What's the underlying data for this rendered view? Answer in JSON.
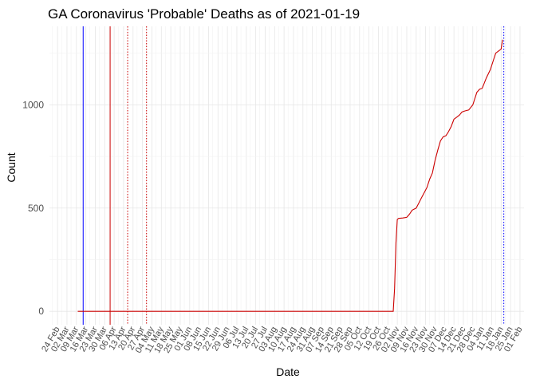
{
  "chart_data": {
    "type": "line",
    "title": "GA Coronavirus 'Probable' Deaths as of 2021-01-19",
    "xlabel": "Date",
    "ylabel": "Count",
    "xlim": [
      "2020-02-18",
      "2021-02-04"
    ],
    "ylim": [
      -65,
      1380
    ],
    "yticks": [
      0,
      500,
      1000
    ],
    "xticks": [
      "2020-02-24",
      "2020-03-02",
      "2020-03-09",
      "2020-03-16",
      "2020-03-23",
      "2020-03-30",
      "2020-04-06",
      "2020-04-13",
      "2020-04-20",
      "2020-04-27",
      "2020-05-04",
      "2020-05-11",
      "2020-05-18",
      "2020-05-25",
      "2020-06-01",
      "2020-06-08",
      "2020-06-15",
      "2020-06-22",
      "2020-06-29",
      "2020-07-06",
      "2020-07-13",
      "2020-07-20",
      "2020-07-27",
      "2020-08-03",
      "2020-08-10",
      "2020-08-17",
      "2020-08-24",
      "2020-08-31",
      "2020-09-07",
      "2020-09-14",
      "2020-09-21",
      "2020-09-28",
      "2020-10-05",
      "2020-10-12",
      "2020-10-19",
      "2020-10-26",
      "2020-11-02",
      "2020-11-09",
      "2020-11-16",
      "2020-11-23",
      "2020-11-30",
      "2020-12-07",
      "2020-12-14",
      "2020-12-21",
      "2020-12-28",
      "2021-01-04",
      "2021-01-11",
      "2021-01-18",
      "2021-01-25",
      "2021-02-01"
    ],
    "xtick_labels": [
      "24 Feb",
      "02 Mar",
      "09 Mar",
      "16 Mar",
      "23 Mar",
      "30 Mar",
      "06 Apr",
      "13 Apr",
      "20 Apr",
      "27 Apr",
      "04 May",
      "11 May",
      "18 May",
      "25 May",
      "01 Jun",
      "08 Jun",
      "15 Jun",
      "22 Jun",
      "29 Jun",
      "06 Jul",
      "13 Jul",
      "20 Jul",
      "27 Jul",
      "03 Aug",
      "10 Aug",
      "17 Aug",
      "24 Aug",
      "31 Aug",
      "07 Sep",
      "14 Sep",
      "21 Sep",
      "28 Sep",
      "05 Oct",
      "12 Oct",
      "19 Oct",
      "26 Oct",
      "02 Nov",
      "09 Nov",
      "16 Nov",
      "23 Nov",
      "30 Nov",
      "07 Dec",
      "14 Dec",
      "21 Dec",
      "28 Dec",
      "04 Jan",
      "11 Jan",
      "18 Jan",
      "25 Jan",
      "01 Feb"
    ],
    "grid": true,
    "reference_lines": [
      {
        "x": "2020-03-14",
        "color": "#0000ff",
        "style": "solid"
      },
      {
        "x": "2020-04-03",
        "color": "#cc0000",
        "style": "solid"
      },
      {
        "x": "2020-04-16",
        "color": "#cc0000",
        "style": "dotted"
      },
      {
        "x": "2020-04-30",
        "color": "#cc0000",
        "style": "dotted"
      },
      {
        "x": "2021-01-20",
        "color": "#0000ff",
        "style": "dotted"
      }
    ],
    "series": [
      {
        "color": "#cc0000",
        "x": [
          "2020-03-10",
          "2020-10-30",
          "2020-10-31",
          "2020-11-01",
          "2020-11-02",
          "2020-11-03",
          "2020-11-06",
          "2020-11-09",
          "2020-11-11",
          "2020-11-13",
          "2020-11-16",
          "2020-11-18",
          "2020-11-20",
          "2020-11-22",
          "2020-11-24",
          "2020-11-26",
          "2020-11-28",
          "2020-11-30",
          "2020-12-02",
          "2020-12-04",
          "2020-12-06",
          "2020-12-08",
          "2020-12-10",
          "2020-12-12",
          "2020-12-14",
          "2020-12-16",
          "2020-12-18",
          "2020-12-20",
          "2020-12-22",
          "2020-12-25",
          "2020-12-28",
          "2020-12-31",
          "2021-01-02",
          "2021-01-04",
          "2021-01-07",
          "2021-01-10",
          "2021-01-12",
          "2021-01-14",
          "2021-01-16",
          "2021-01-18",
          "2021-01-19"
        ],
        "values": [
          0,
          0,
          110,
          330,
          445,
          450,
          452,
          455,
          470,
          490,
          500,
          525,
          550,
          575,
          600,
          640,
          670,
          730,
          780,
          825,
          845,
          850,
          870,
          895,
          930,
          940,
          950,
          965,
          970,
          975,
          1000,
          1060,
          1075,
          1080,
          1130,
          1170,
          1210,
          1250,
          1260,
          1270,
          1315
        ]
      }
    ]
  }
}
